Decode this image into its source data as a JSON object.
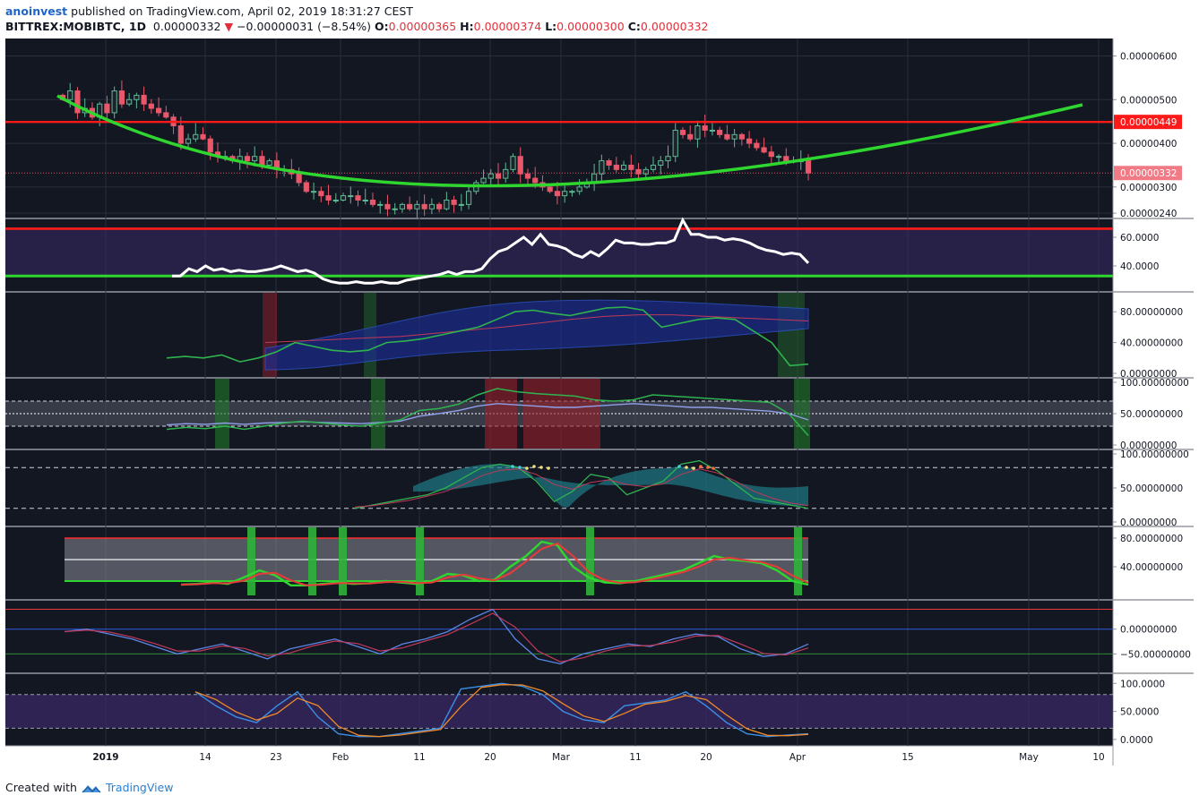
{
  "header": {
    "user": "anoinvest",
    "published": "published on TradingView.com, April 02, 2019 18:31:27 CEST",
    "symbol": "BITTREX:MOBIBTC, 1D",
    "last": "0.00000332",
    "change_arrow": "▼",
    "change": "−0.00000031 (−8.54%)",
    "o_label": "O:",
    "o": "0.00000365",
    "h_label": "H:",
    "h": "0.00000374",
    "l_label": "L:",
    "l": "0.00000300",
    "c_label": "C:",
    "c": "0.00000332"
  },
  "footer": {
    "created": "Created with",
    "brand": "TradingView",
    "logo_icon": "tradingview-logo-icon"
  },
  "colors": {
    "background": "#131722",
    "up": "#5fb994",
    "down": "#e8576a",
    "green_line": "#2fd62f",
    "red_line": "#ff1a1a",
    "blue": "#2f5be0",
    "axis_text": "#131722"
  },
  "chart_data": [
    {
      "type": "candlestick",
      "pane": "price",
      "x_ticks": [
        "2019",
        "14",
        "23",
        "Feb",
        "11",
        "20",
        "Mar",
        "11",
        "20",
        "Apr",
        "15",
        "May",
        "10"
      ],
      "y_ticks": [
        "0.00000600",
        "0.00000500",
        "0.00000400",
        "0.00000300",
        "0.00000240"
      ],
      "ylim": [
        2.3e-06,
        6.4e-06
      ],
      "resistance_level": "0.00000449",
      "last_price_label": "0.00000332",
      "close": [
        500,
        520,
        470,
        480,
        460,
        490,
        470,
        520,
        490,
        500,
        510,
        490,
        480,
        470,
        460,
        440,
        400,
        410,
        420,
        410,
        380,
        370,
        370,
        360,
        370,
        360,
        370,
        350,
        360,
        340,
        340,
        330,
        310,
        290,
        290,
        280,
        270,
        270,
        280,
        280,
        270,
        270,
        260,
        260,
        250,
        250,
        260,
        250,
        260,
        250,
        260,
        250,
        270,
        260,
        260,
        290,
        310,
        320,
        330,
        320,
        340,
        370,
        330,
        320,
        310,
        300,
        290,
        280,
        290,
        290,
        300,
        310,
        330,
        360,
        350,
        340,
        350,
        340,
        330,
        340,
        350,
        360,
        370,
        430,
        420,
        410,
        440,
        430,
        430,
        420,
        410,
        420,
        410,
        400,
        390,
        380,
        370,
        370,
        360,
        360,
        360,
        332
      ]
    },
    {
      "type": "line",
      "pane": "oscillator-1",
      "y_ticks": [
        "60.0000",
        "40.0000"
      ],
      "ylim": [
        25,
        70
      ],
      "upper_line": 66,
      "lower_line": 33,
      "values": [
        33,
        33,
        38,
        36,
        40,
        37,
        38,
        36,
        37,
        36,
        36,
        37,
        38,
        40,
        38,
        36,
        37,
        35,
        31,
        29,
        28,
        28,
        29,
        28,
        28,
        29,
        28,
        28,
        30,
        31,
        32,
        33,
        34,
        36,
        34,
        36,
        36,
        38,
        45,
        50,
        52,
        56,
        60,
        55,
        62,
        55,
        54,
        52,
        48,
        46,
        50,
        47,
        52,
        58,
        56,
        56,
        55,
        55,
        56,
        56,
        58,
        72,
        62,
        62,
        60,
        60,
        58,
        59,
        58,
        56,
        53,
        51,
        50,
        48,
        49,
        48,
        42
      ]
    },
    {
      "type": "line",
      "pane": "oscillator-2",
      "y_ticks": [
        "80.00000000",
        "40.00000000",
        "0.00000000"
      ],
      "ylim": [
        0,
        100
      ],
      "values": [
        20,
        22,
        20,
        24,
        15,
        20,
        28,
        40,
        35,
        30,
        28,
        30,
        40,
        42,
        45,
        50,
        55,
        60,
        70,
        80,
        82,
        78,
        75,
        80,
        85,
        86,
        82,
        60,
        65,
        70,
        72,
        70,
        55,
        40,
        10,
        12
      ]
    },
    {
      "type": "line",
      "pane": "oscillator-3",
      "y_ticks": [
        "100.00000000",
        "50.00000000",
        "0.00000000"
      ],
      "ylim": [
        0,
        100
      ],
      "upper_band": 70,
      "lower_band": 30,
      "midline": 50,
      "values": [
        25,
        28,
        26,
        30,
        25,
        30,
        35,
        38,
        35,
        32,
        30,
        35,
        40,
        55,
        58,
        65,
        80,
        90,
        85,
        82,
        80,
        78,
        72,
        70,
        72,
        80,
        78,
        76,
        74,
        72,
        70,
        68,
        50,
        15
      ]
    },
    {
      "type": "line",
      "pane": "oscillator-4",
      "y_ticks": [
        "100.00000000",
        "50.00000000",
        "0.00000000"
      ],
      "ylim": [
        0,
        100
      ],
      "upper_band": 80,
      "lower_band": 20,
      "values": [
        20,
        25,
        30,
        35,
        40,
        50,
        65,
        80,
        85,
        80,
        60,
        30,
        45,
        70,
        65,
        40,
        50,
        60,
        85,
        90,
        75,
        55,
        35,
        30,
        25,
        20
      ]
    },
    {
      "type": "line",
      "pane": "oscillator-5",
      "y_ticks": [
        "80.00000000",
        "40.00000000"
      ],
      "ylim": [
        0,
        90
      ],
      "upper_band": 80,
      "lower_band": 20,
      "mid": 50,
      "values": [
        15,
        16,
        18,
        16,
        25,
        35,
        28,
        14,
        14,
        16,
        18,
        16,
        17,
        20,
        18,
        16,
        20,
        30,
        28,
        20,
        22,
        40,
        55,
        75,
        70,
        40,
        25,
        18,
        17,
        20,
        25,
        30,
        35,
        45,
        55,
        50,
        48,
        45,
        35,
        20,
        15
      ]
    },
    {
      "type": "line",
      "pane": "oscillator-6",
      "y_ticks": [
        "0.00000000",
        "−50.00000000"
      ],
      "ylim": [
        -80,
        50
      ],
      "values": [
        -5,
        0,
        -10,
        -20,
        -35,
        -50,
        -40,
        -30,
        -45,
        -60,
        -40,
        -30,
        -20,
        -35,
        -50,
        -30,
        -20,
        -5,
        20,
        40,
        -20,
        -60,
        -70,
        -50,
        -40,
        -30,
        -35,
        -20,
        -10,
        -15,
        -40,
        -55,
        -50,
        -30
      ]
    },
    {
      "type": "line",
      "pane": "oscillator-7",
      "y_ticks": [
        "100.0000",
        "50.0000",
        "0.0000"
      ],
      "ylim": [
        -5,
        110
      ],
      "upper_band": 80,
      "lower_band": 20,
      "values": [
        85,
        60,
        40,
        30,
        60,
        85,
        40,
        10,
        5,
        5,
        10,
        15,
        20,
        90,
        95,
        100,
        95,
        80,
        50,
        35,
        30,
        60,
        65,
        70,
        85,
        60,
        30,
        10,
        5,
        8,
        10
      ]
    }
  ]
}
